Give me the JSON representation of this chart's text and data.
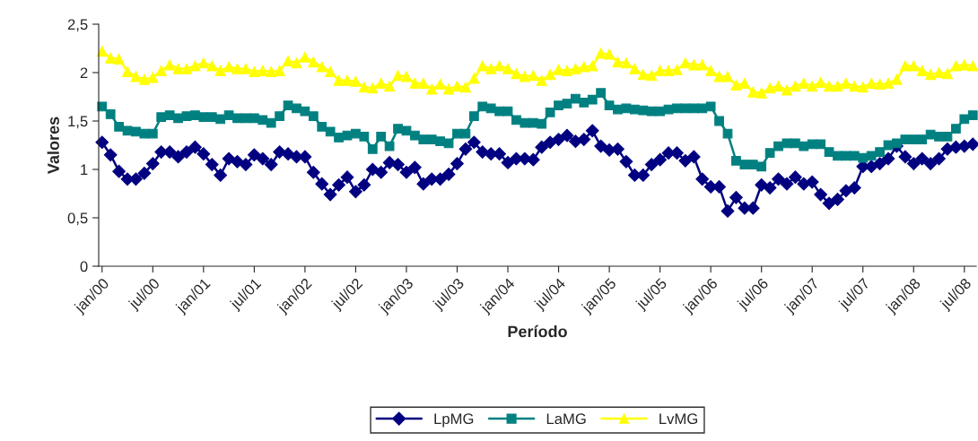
{
  "chart_data": {
    "type": "line",
    "xlabel": "Período",
    "ylabel": "Valores",
    "categories": [
      "jan/00",
      null,
      null,
      null,
      null,
      null,
      "jul/00",
      null,
      null,
      null,
      null,
      null,
      "jan/01",
      null,
      null,
      null,
      null,
      null,
      "jul/01",
      null,
      null,
      null,
      null,
      null,
      "jan/02",
      null,
      null,
      null,
      null,
      null,
      "jul/02",
      null,
      null,
      null,
      null,
      null,
      "jan/03",
      null,
      null,
      null,
      null,
      null,
      "jul/03",
      null,
      null,
      null,
      null,
      null,
      "jan/04",
      null,
      null,
      null,
      null,
      null,
      "jul/04",
      null,
      null,
      null,
      null,
      null,
      "jan/05",
      null,
      null,
      null,
      null,
      null,
      "jul/05",
      null,
      null,
      null,
      null,
      null,
      "jan/06",
      null,
      null,
      null,
      null,
      null,
      "jul/06",
      null,
      null,
      null,
      null,
      null,
      "jan/07",
      null,
      null,
      null,
      null,
      null,
      "jul/07",
      null,
      null,
      null,
      null,
      null,
      "jan/08",
      null,
      null,
      null,
      null,
      null,
      "jul/08",
      null
    ],
    "ylim": [
      0,
      2.5
    ],
    "yticks": [
      {
        "value": 0,
        "label": "0"
      },
      {
        "value": 0.5,
        "label": "0,5"
      },
      {
        "value": 1,
        "label": "1"
      },
      {
        "value": 1.5,
        "label": "1,5"
      },
      {
        "value": 2,
        "label": "2"
      },
      {
        "value": 2.5,
        "label": "2,5"
      }
    ],
    "grid": false,
    "legend": "bottom",
    "line_style": "solid",
    "series": [
      {
        "name": "LpMG",
        "color": "#000080",
        "marker": "diamond",
        "values": [
          1.28,
          1.15,
          0.98,
          0.9,
          0.9,
          0.96,
          1.06,
          1.18,
          1.18,
          1.13,
          1.18,
          1.23,
          1.16,
          1.05,
          0.94,
          1.11,
          1.08,
          1.05,
          1.15,
          1.11,
          1.05,
          1.18,
          1.16,
          1.13,
          1.13,
          0.97,
          0.85,
          0.74,
          0.84,
          0.92,
          0.77,
          0.84,
          1.0,
          0.97,
          1.07,
          1.05,
          0.97,
          1.02,
          0.85,
          0.9,
          0.9,
          0.95,
          1.06,
          1.21,
          1.28,
          1.18,
          1.16,
          1.16,
          1.07,
          1.11,
          1.11,
          1.1,
          1.23,
          1.28,
          1.31,
          1.35,
          1.29,
          1.31,
          1.4,
          1.24,
          1.2,
          1.21,
          1.08,
          0.94,
          0.94,
          1.05,
          1.1,
          1.17,
          1.17,
          1.09,
          1.13,
          0.9,
          0.82,
          0.82,
          0.57,
          0.71,
          0.6,
          0.6,
          0.84,
          0.81,
          0.9,
          0.85,
          0.92,
          0.85,
          0.87,
          0.74,
          0.65,
          0.69,
          0.78,
          0.81,
          1.03,
          1.03,
          1.06,
          1.11,
          1.24,
          1.13,
          1.06,
          1.11,
          1.06,
          1.11,
          1.21,
          1.23,
          1.24,
          1.26
        ]
      },
      {
        "name": "LaMG",
        "color": "#008080",
        "marker": "square",
        "values": [
          1.65,
          1.57,
          1.44,
          1.4,
          1.39,
          1.37,
          1.37,
          1.54,
          1.56,
          1.53,
          1.55,
          1.56,
          1.54,
          1.54,
          1.52,
          1.56,
          1.53,
          1.53,
          1.53,
          1.51,
          1.48,
          1.55,
          1.66,
          1.63,
          1.6,
          1.55,
          1.44,
          1.39,
          1.33,
          1.35,
          1.37,
          1.34,
          1.21,
          1.34,
          1.24,
          1.42,
          1.4,
          1.35,
          1.31,
          1.31,
          1.29,
          1.27,
          1.37,
          1.37,
          1.55,
          1.65,
          1.63,
          1.6,
          1.6,
          1.51,
          1.48,
          1.48,
          1.47,
          1.59,
          1.66,
          1.68,
          1.73,
          1.69,
          1.72,
          1.79,
          1.66,
          1.62,
          1.63,
          1.62,
          1.61,
          1.6,
          1.6,
          1.62,
          1.63,
          1.63,
          1.63,
          1.63,
          1.65,
          1.5,
          1.37,
          1.09,
          1.05,
          1.05,
          1.03,
          1.17,
          1.24,
          1.27,
          1.27,
          1.24,
          1.26,
          1.26,
          1.18,
          1.14,
          1.14,
          1.14,
          1.12,
          1.14,
          1.18,
          1.25,
          1.27,
          1.31,
          1.31,
          1.31,
          1.36,
          1.34,
          1.34,
          1.42,
          1.52,
          1.56
        ]
      },
      {
        "name": "LvMG",
        "color": "#ffff00",
        "marker": "triangle",
        "values": [
          2.22,
          2.15,
          2.14,
          2.01,
          1.96,
          1.93,
          1.95,
          2.02,
          2.08,
          2.04,
          2.04,
          2.07,
          2.1,
          2.07,
          2.02,
          2.06,
          2.04,
          2.04,
          2.01,
          2.02,
          2.01,
          2.02,
          2.12,
          2.1,
          2.16,
          2.11,
          2.06,
          2.01,
          1.92,
          1.92,
          1.91,
          1.85,
          1.84,
          1.89,
          1.86,
          1.97,
          1.96,
          1.89,
          1.89,
          1.83,
          1.88,
          1.83,
          1.86,
          1.85,
          1.94,
          2.07,
          2.04,
          2.07,
          2.04,
          1.99,
          1.96,
          1.97,
          1.92,
          1.98,
          2.03,
          2.02,
          2.04,
          2.06,
          2.07,
          2.2,
          2.19,
          2.11,
          2.1,
          2.04,
          1.98,
          1.97,
          2.02,
          2.02,
          2.03,
          2.1,
          2.08,
          2.08,
          2.02,
          1.96,
          1.96,
          1.87,
          1.89,
          1.8,
          1.79,
          1.84,
          1.86,
          1.82,
          1.86,
          1.89,
          1.86,
          1.9,
          1.86,
          1.86,
          1.89,
          1.86,
          1.85,
          1.89,
          1.88,
          1.89,
          1.93,
          2.07,
          2.07,
          2.02,
          1.98,
          2.0,
          1.99,
          2.07,
          2.08,
          2.07
        ]
      }
    ]
  }
}
